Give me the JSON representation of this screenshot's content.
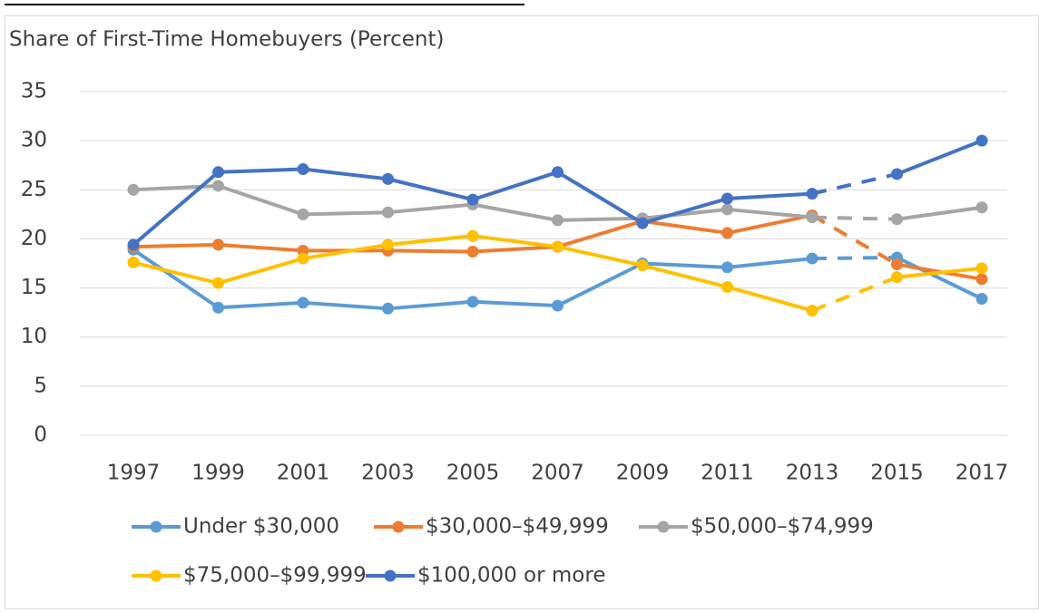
{
  "chart_data": {
    "type": "line",
    "title": "Share of First-Time Homebuyers (Percent)",
    "categories": [
      "1997",
      "1999",
      "2001",
      "2003",
      "2005",
      "2007",
      "2009",
      "2011",
      "2013",
      "2015",
      "2017"
    ],
    "ylim": [
      0,
      35
    ],
    "yticks": [
      0,
      5,
      10,
      15,
      20,
      25,
      30,
      35
    ],
    "grid": true,
    "dashed_between": [
      8,
      9
    ],
    "series": [
      {
        "name": "Under $30,000",
        "color": "#5b9bd5",
        "values": [
          18.9,
          13.0,
          13.5,
          12.9,
          13.6,
          13.2,
          17.5,
          17.1,
          18.0,
          18.1,
          13.9
        ]
      },
      {
        "name": "$30,000–$49,999",
        "color": "#ed7d31",
        "values": [
          19.2,
          19.4,
          18.8,
          18.8,
          18.7,
          19.2,
          21.8,
          20.6,
          22.4,
          17.4,
          15.9
        ]
      },
      {
        "name": "$50,000–$74,999",
        "color": "#a5a5a5",
        "values": [
          25.0,
          25.4,
          22.5,
          22.7,
          23.5,
          21.9,
          22.1,
          23.0,
          22.2,
          22.0,
          23.2
        ]
      },
      {
        "name": "$75,000–$99,999",
        "color": "#ffc000",
        "values": [
          17.6,
          15.5,
          18.0,
          19.4,
          20.3,
          19.2,
          17.3,
          15.1,
          12.7,
          16.1,
          17.0
        ]
      },
      {
        "name": "$100,000 or more",
        "color": "#4472c4",
        "values": [
          19.4,
          26.8,
          27.1,
          26.1,
          24.0,
          26.8,
          21.6,
          24.1,
          24.6,
          26.6,
          30.0
        ]
      }
    ]
  }
}
